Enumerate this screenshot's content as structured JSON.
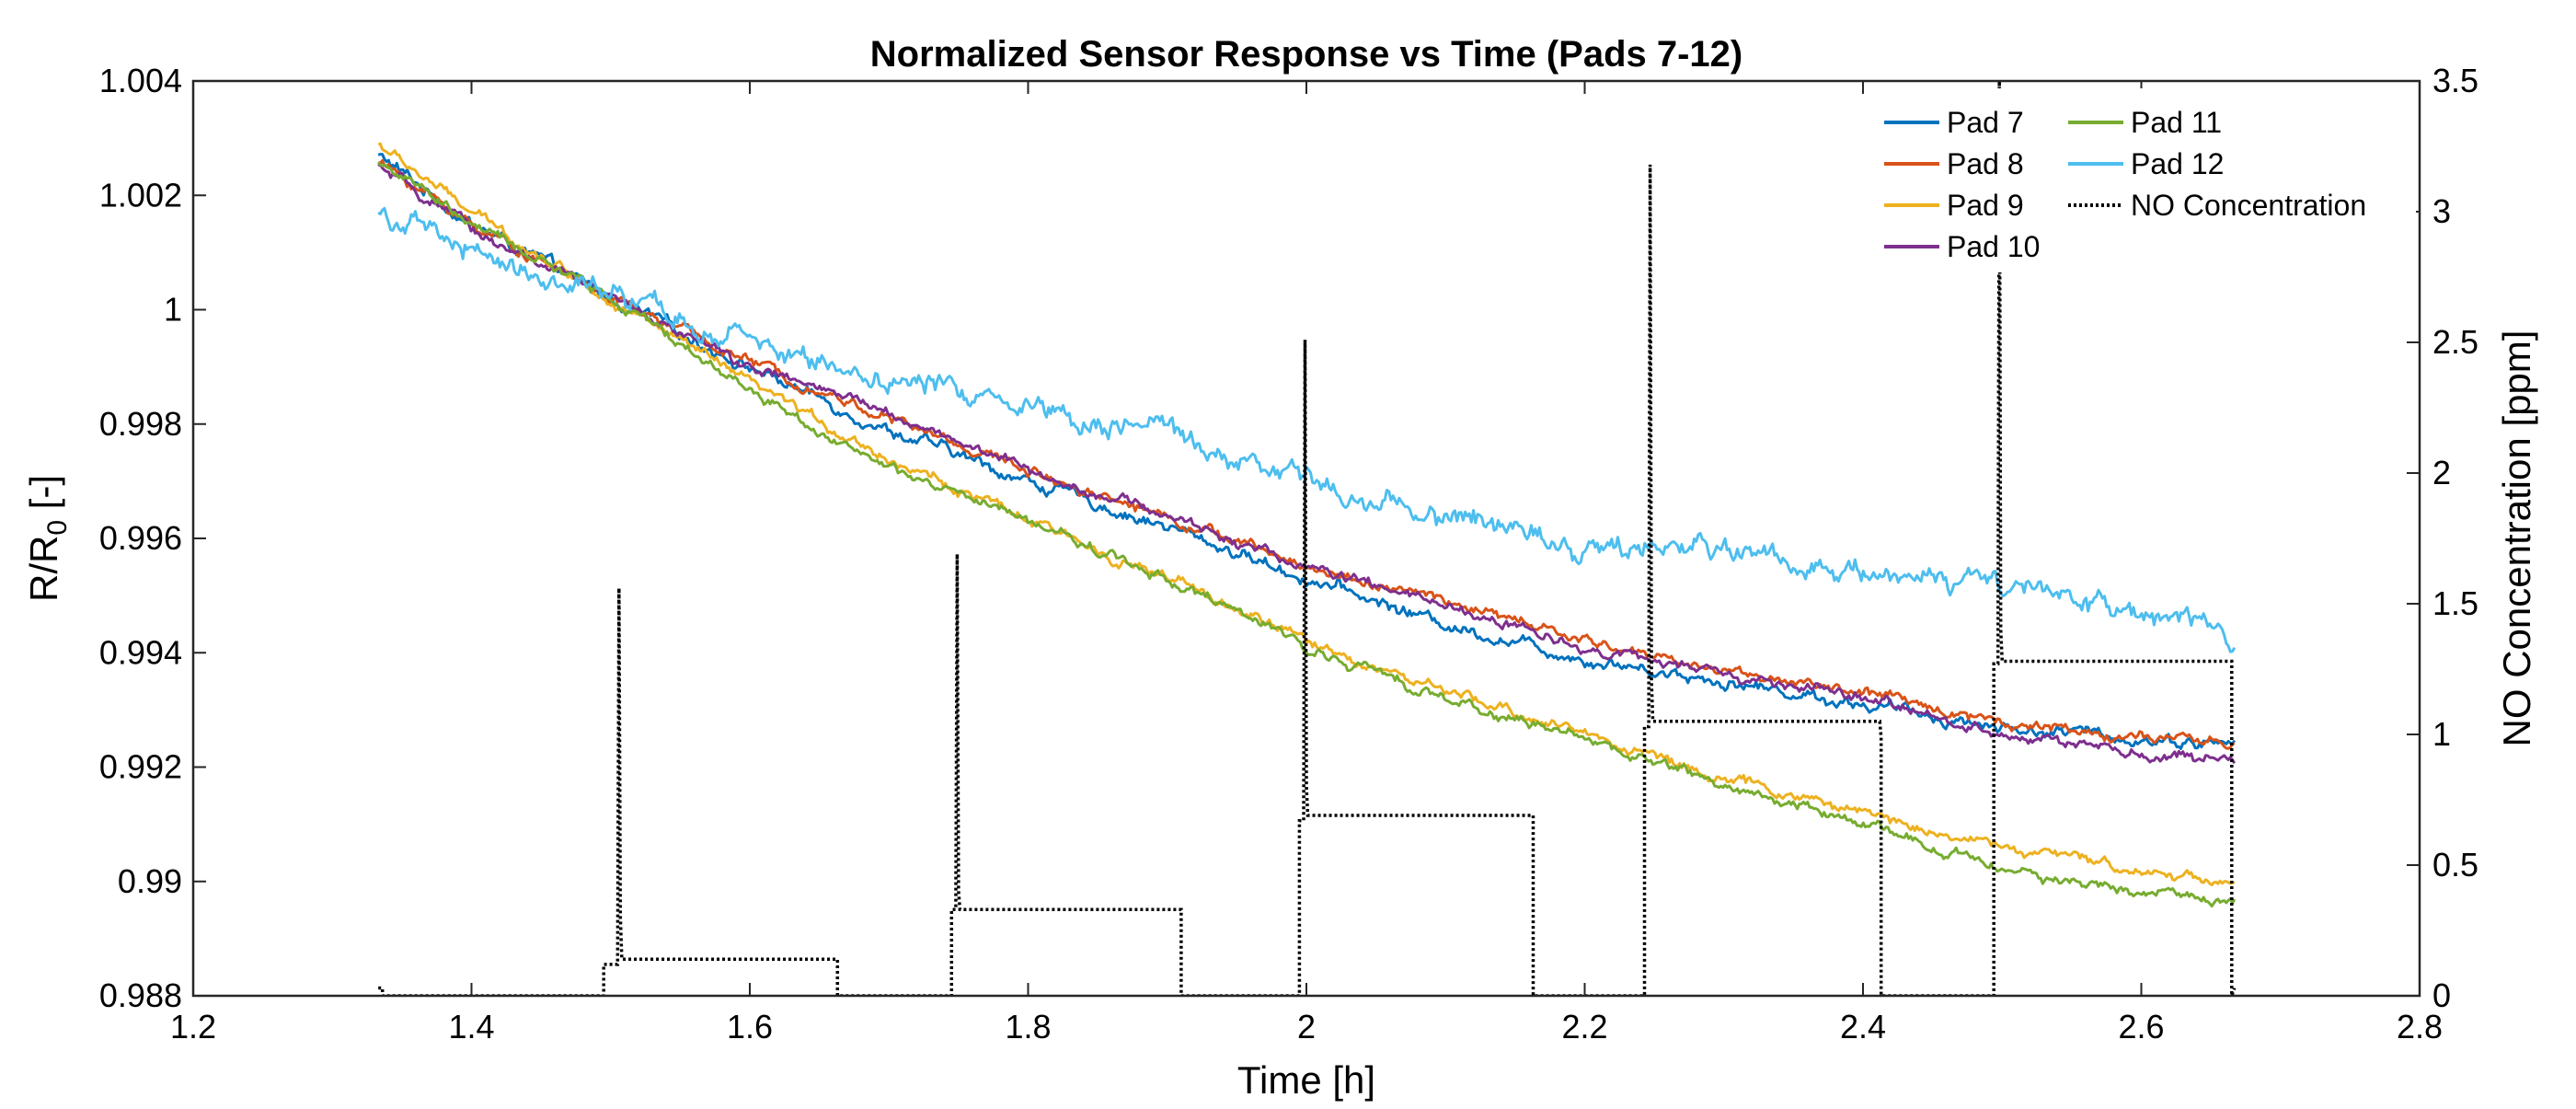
{
  "chart_data": {
    "type": "line",
    "title": "Normalized Sensor Response vs Time (Pads 7-12)",
    "xlabel": "Time [h]",
    "ylabel_left": "R/R",
    "ylabel_left_sub": "0",
    "ylabel_left_suffix": " [-]",
    "ylabel_right": "NO Concentration [ppm]",
    "xlim": [
      1.2,
      2.8
    ],
    "ylim_left": [
      0.988,
      1.004
    ],
    "ylim_right": [
      0,
      3.5
    ],
    "x_ticks": [
      1.2,
      1.4,
      1.6,
      1.8,
      2,
      2.2,
      2.4,
      2.6,
      2.8
    ],
    "x_tick_labels": [
      "1.2",
      "1.4",
      "1.6",
      "1.8",
      "2",
      "2.2",
      "2.4",
      "2.6",
      "2.8"
    ],
    "y_left_ticks": [
      0.988,
      0.99,
      0.992,
      0.994,
      0.996,
      0.998,
      1,
      1.002,
      1.004
    ],
    "y_left_tick_labels": [
      "0.988",
      "0.99",
      "0.992",
      "0.994",
      "0.996",
      "0.998",
      "1",
      "1.002",
      "1.004"
    ],
    "y_right_ticks": [
      0,
      0.5,
      1,
      1.5,
      2,
      2.5,
      3,
      3.5
    ],
    "y_right_tick_labels": [
      "0",
      "0.5",
      "1",
      "1.5",
      "2",
      "2.5",
      "3",
      "3.5"
    ],
    "grid": false,
    "legend_position": "top-right",
    "series": [
      {
        "name": "Pad 7",
        "axis": "left",
        "color": "#0072BD",
        "noise": 0.00012,
        "x": [
          1.333,
          1.4,
          1.5,
          1.6,
          1.7,
          1.8,
          1.9,
          2.0,
          2.1,
          2.2,
          2.3,
          2.4,
          2.5,
          2.6,
          2.667
        ],
        "y": [
          1.0027,
          1.0015,
          1.0002,
          0.999,
          0.9979,
          0.997,
          0.9962,
          0.9953,
          0.9945,
          0.9939,
          0.9935,
          0.9931,
          0.9927,
          0.9925,
          0.9924
        ]
      },
      {
        "name": "Pad 8",
        "axis": "left",
        "color": "#D95319",
        "noise": 0.0001,
        "x": [
          1.333,
          1.4,
          1.5,
          1.6,
          1.7,
          1.8,
          1.9,
          2.0,
          2.1,
          2.2,
          2.3,
          2.4,
          2.5,
          2.6,
          2.667
        ],
        "y": [
          1.0026,
          1.0015,
          1.0002,
          0.9991,
          0.9981,
          0.9972,
          0.9964,
          0.9955,
          0.9949,
          0.9942,
          0.9937,
          0.9933,
          0.9928,
          0.9925,
          0.9924
        ]
      },
      {
        "name": "Pad 9",
        "axis": "left",
        "color": "#EDB120",
        "noise": 0.0001,
        "x": [
          1.333,
          1.4,
          1.5,
          1.6,
          1.7,
          1.8,
          1.9,
          2.0,
          2.1,
          2.2,
          2.3,
          2.4,
          2.5,
          2.6,
          2.667
        ],
        "y": [
          1.0029,
          1.0017,
          1.0002,
          0.9987,
          0.9974,
          0.9963,
          0.9953,
          0.9942,
          0.9933,
          0.9926,
          0.9918,
          0.9912,
          0.9906,
          0.9902,
          0.99
        ]
      },
      {
        "name": "Pad 10",
        "axis": "left",
        "color": "#7E2F8E",
        "noise": 0.0001,
        "x": [
          1.333,
          1.4,
          1.5,
          1.6,
          1.7,
          1.8,
          1.9,
          2.0,
          2.1,
          2.2,
          2.3,
          2.4,
          2.5,
          2.6,
          2.667
        ],
        "y": [
          1.0025,
          1.0014,
          1.0002,
          0.999,
          0.9982,
          0.9972,
          0.9964,
          0.9955,
          0.9948,
          0.9941,
          0.9936,
          0.9932,
          0.9926,
          0.9922,
          0.9921
        ]
      },
      {
        "name": "Pad 11",
        "axis": "left",
        "color": "#77AC30",
        "noise": 0.0001,
        "x": [
          1.333,
          1.4,
          1.5,
          1.6,
          1.7,
          1.8,
          1.9,
          2.0,
          2.1,
          2.2,
          2.3,
          2.4,
          2.5,
          2.6,
          2.667
        ],
        "y": [
          1.0026,
          1.0015,
          1.0002,
          0.9986,
          0.9972,
          0.9963,
          0.9953,
          0.9941,
          0.9932,
          0.9925,
          0.9917,
          0.991,
          0.9902,
          0.9898,
          0.9897
        ]
      },
      {
        "name": "Pad 12",
        "axis": "left",
        "color": "#4DBEEE",
        "noise": 0.00022,
        "x": [
          1.333,
          1.4,
          1.5,
          1.6,
          1.7,
          1.8,
          1.9,
          2.0,
          2.1,
          2.2,
          2.3,
          2.4,
          2.5,
          2.6,
          2.667
        ],
        "y": [
          1.0017,
          1.001,
          1.0002,
          0.9994,
          0.9988,
          0.9984,
          0.9978,
          0.997,
          0.9964,
          0.9959,
          0.9958,
          0.9955,
          0.9951,
          0.9946,
          0.9943
        ]
      },
      {
        "name": "NO Concentration",
        "axis": "right",
        "color": "#000000",
        "dashed": true,
        "x": [
          1.333,
          1.336,
          1.336,
          1.495,
          1.495,
          1.505,
          1.506,
          1.507,
          1.508,
          1.663,
          1.663,
          1.745,
          1.745,
          1.748,
          1.749,
          1.75,
          1.751,
          1.91,
          1.91,
          1.995,
          1.995,
          1.998,
          1.999,
          2.0,
          2.001,
          2.163,
          2.163,
          2.243,
          2.243,
          2.246,
          2.247,
          2.248,
          2.249,
          2.412,
          2.413,
          2.413,
          2.494,
          2.494,
          2.497,
          2.498,
          2.499,
          2.5,
          2.665,
          2.665,
          2.667
        ],
        "y": [
          0.03,
          0.03,
          0.0,
          0.0,
          0.12,
          0.12,
          1.56,
          0.3,
          0.14,
          0.14,
          0.0,
          0.0,
          0.33,
          0.33,
          1.69,
          0.4,
          0.33,
          0.33,
          0.0,
          0.0,
          0.67,
          0.67,
          2.51,
          0.8,
          0.69,
          0.69,
          0.0,
          0.0,
          1.03,
          1.03,
          3.18,
          1.2,
          1.05,
          1.05,
          0.99,
          0.0,
          0.0,
          1.27,
          1.27,
          3.5,
          1.4,
          1.28,
          1.28,
          0.0,
          0.03
        ]
      }
    ]
  }
}
